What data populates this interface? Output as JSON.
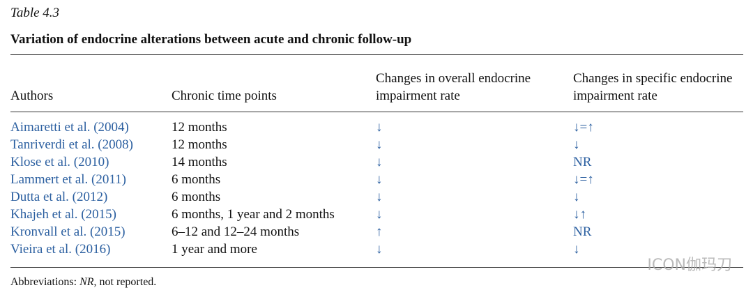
{
  "title": "Table 4.3",
  "caption": "Variation of endocrine alterations between acute and chronic follow-up",
  "table": {
    "columns": [
      [
        "Authors"
      ],
      [
        "Chronic time points"
      ],
      [
        "Changes in overall endocrine",
        "impairment rate"
      ],
      [
        "Changes in specific endocrine",
        "impairment rate"
      ]
    ],
    "rows": [
      [
        "Aimaretti et al. (2004)",
        "12 months",
        "↓",
        "↓=↑"
      ],
      [
        "Tanriverdi et al. (2008)",
        "12 months",
        "↓",
        "↓"
      ],
      [
        "Klose et al. (2010)",
        "14 months",
        "↓",
        "NR"
      ],
      [
        "Lammert et al. (2011)",
        "6 months",
        "↓",
        "↓=↑"
      ],
      [
        "Dutta et al. (2012)",
        "6 months",
        "↓",
        "↓"
      ],
      [
        "Khajeh et al. (2015)",
        "6 months, 1 year and 2 months",
        "↓",
        "↓↑"
      ],
      [
        "Kronvall et al. (2015)",
        "6–12 and 12–24 months",
        "↑",
        "NR"
      ],
      [
        "Vieira et al. (2016)",
        "1 year and more",
        "↓",
        "↓"
      ]
    ]
  },
  "footnote": {
    "prefix": "Abbreviations:",
    "term": "NR",
    "definition": ", not reported."
  },
  "watermark": "ICON伽玛刀"
}
